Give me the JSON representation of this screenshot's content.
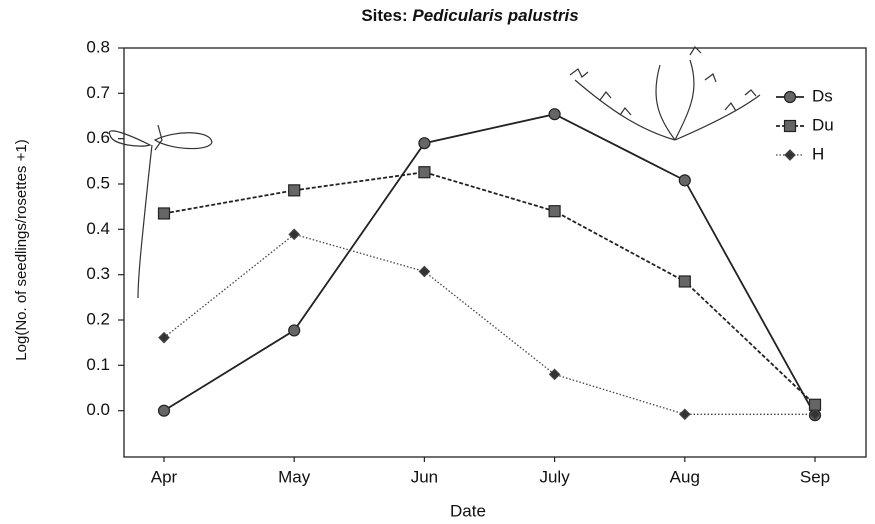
{
  "chart_data": {
    "type": "line",
    "title": [
      "Sites:",
      "Pedicularis palustris"
    ],
    "x_label": "Date",
    "y_label": "Log(No. of seedlings/rosettes +1)",
    "categories": [
      "Apr",
      "May",
      "Jun",
      "July",
      "Aug",
      "Sep"
    ],
    "series": [
      {
        "name": "Ds",
        "color": "#222222",
        "marker": "circle",
        "dash": "solid",
        "values": [
          0.0,
          0.177,
          0.59,
          0.654,
          0.508,
          -0.01
        ]
      },
      {
        "name": "Du",
        "color": "#222222",
        "marker": "square",
        "dash": "dashed",
        "values": [
          0.435,
          0.486,
          0.526,
          0.44,
          0.285,
          0.013
        ]
      },
      {
        "name": "H",
        "color": "#444444",
        "marker": "diamond",
        "dash": "dotted",
        "values": [
          0.161,
          0.389,
          0.307,
          0.08,
          -0.008,
          -0.008
        ]
      }
    ],
    "ylim": [
      -0.1,
      0.8
    ],
    "yticks": [
      {
        "value": 0,
        "label": "0.0"
      },
      0.1,
      0.2,
      0.3,
      0.4,
      0.5,
      0.6,
      0.7,
      0.8
    ],
    "legend": "upper right"
  }
}
